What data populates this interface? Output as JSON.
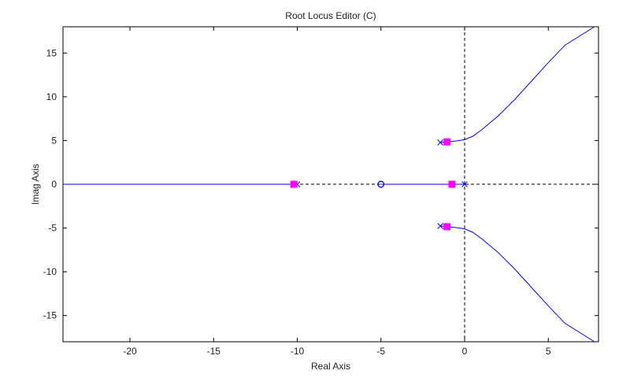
{
  "chart_data": {
    "type": "line",
    "title": "Root Locus Editor (C)",
    "x_label": "Real Axis",
    "y_label": "Imag Axis",
    "xlim": [
      -24,
      8
    ],
    "ylim": [
      -18,
      18
    ],
    "xticks": [
      -20,
      -15,
      -10,
      -5,
      0,
      5
    ],
    "yticks": [
      -15,
      -10,
      -5,
      0,
      5,
      10,
      15
    ],
    "zero_lines": true,
    "series": [
      {
        "marker": "none",
        "color": "#0000ff",
        "x": [
          -24,
          -10
        ],
        "values": [
          0,
          0
        ]
      },
      {
        "marker": "none",
        "color": "#0000ff",
        "x": [
          -5,
          0
        ],
        "values": [
          0,
          0
        ]
      },
      {
        "marker": "none",
        "color": "#0000ff",
        "x": [
          -1.45,
          -1,
          -0.5,
          0,
          0.5,
          1,
          2,
          3,
          4,
          5,
          6,
          7.76
        ],
        "values": [
          4.77,
          4.85,
          4.95,
          5.1,
          5.5,
          6.2,
          7.8,
          9.7,
          11.8,
          13.9,
          15.9,
          18
        ]
      },
      {
        "marker": "none",
        "color": "#0000ff",
        "x": [
          -1.45,
          -1,
          -0.5,
          0,
          0.5,
          1,
          2,
          3,
          4,
          5,
          6,
          7.76
        ],
        "values": [
          -4.77,
          -4.85,
          -4.95,
          -5.1,
          -5.5,
          -6.2,
          -7.8,
          -9.7,
          -11.8,
          -13.9,
          -15.9,
          -18
        ]
      },
      {
        "marker": "x",
        "color": "#0000ff",
        "x": [
          -10,
          0,
          -1.45,
          -1.45
        ],
        "values": [
          0,
          0,
          4.77,
          -4.77
        ]
      },
      {
        "marker": "o",
        "color": "#0000ff",
        "x": [
          -5
        ],
        "values": [
          0
        ]
      },
      {
        "marker": "square",
        "color": "#ff00ff",
        "x": [
          -10.2,
          -0.75,
          -1.05,
          -1.05
        ],
        "values": [
          0,
          0,
          4.85,
          -4.85
        ]
      }
    ]
  }
}
